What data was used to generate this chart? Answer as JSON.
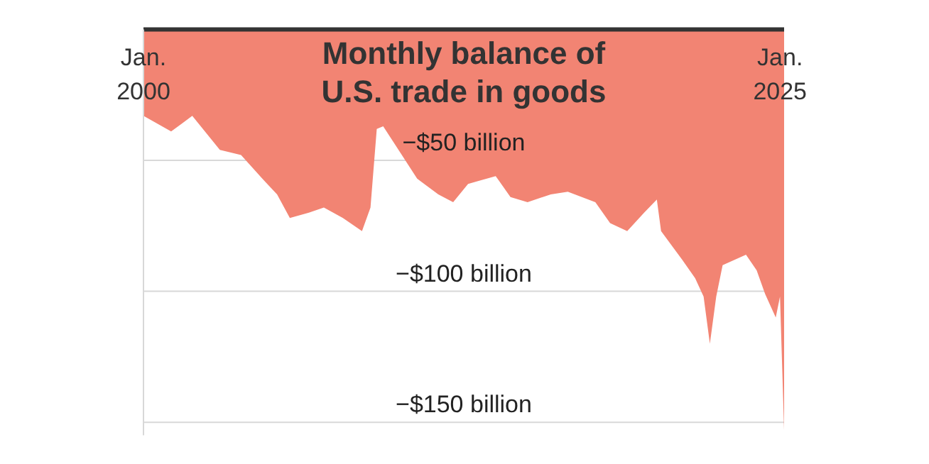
{
  "chart_data": {
    "type": "area",
    "title": "Monthly balance of U.S. trade in goods",
    "color": "#f28473",
    "x": [
      "2000-01",
      "2001-02",
      "2001-12",
      "2003-01",
      "2003-11",
      "2004-09",
      "2005-04",
      "2005-10",
      "2006-07",
      "2007-02",
      "2007-11",
      "2008-08",
      "2008-12",
      "2009-03",
      "2009-06",
      "2010-02",
      "2010-10",
      "2011-08",
      "2012-03",
      "2012-10",
      "2013-11",
      "2014-06",
      "2015-02",
      "2016-01",
      "2016-09",
      "2017-10",
      "2018-05",
      "2019-01",
      "2019-09",
      "2020-03",
      "2020-05",
      "2021-03",
      "2021-09",
      "2022-01",
      "2022-04",
      "2022-07",
      "2022-10",
      "2023-09",
      "2024-02",
      "2024-06",
      "2024-11",
      "2025-01",
      "2025-03"
    ],
    "values": [
      -33,
      -39,
      -33,
      -46,
      -48,
      -57,
      -63,
      -72,
      -70,
      -68,
      -72,
      -77,
      -68,
      -38,
      -37,
      -47,
      -57,
      -63,
      -66,
      -59,
      -56,
      -64,
      -66,
      -63,
      -62,
      -66,
      -74,
      -77,
      -70,
      -65,
      -77,
      -88,
      -95,
      -102,
      -120,
      -102,
      -90,
      -86,
      -92,
      -101,
      -110,
      -102,
      -153
    ],
    "xlim": [
      "2000-01",
      "2025-03"
    ],
    "xticks": [
      {
        "value": "2000-01",
        "label": "Jan. 2000"
      },
      {
        "value": "2025-01",
        "label": "Jan. 2025"
      }
    ],
    "ylim": [
      -155,
      0
    ],
    "yticks": [
      {
        "value": -50,
        "label": "−$50 billion"
      },
      {
        "value": -100,
        "label": "−$100 billion"
      },
      {
        "value": -150,
        "label": "−$150 billion"
      }
    ],
    "grid": "y"
  }
}
